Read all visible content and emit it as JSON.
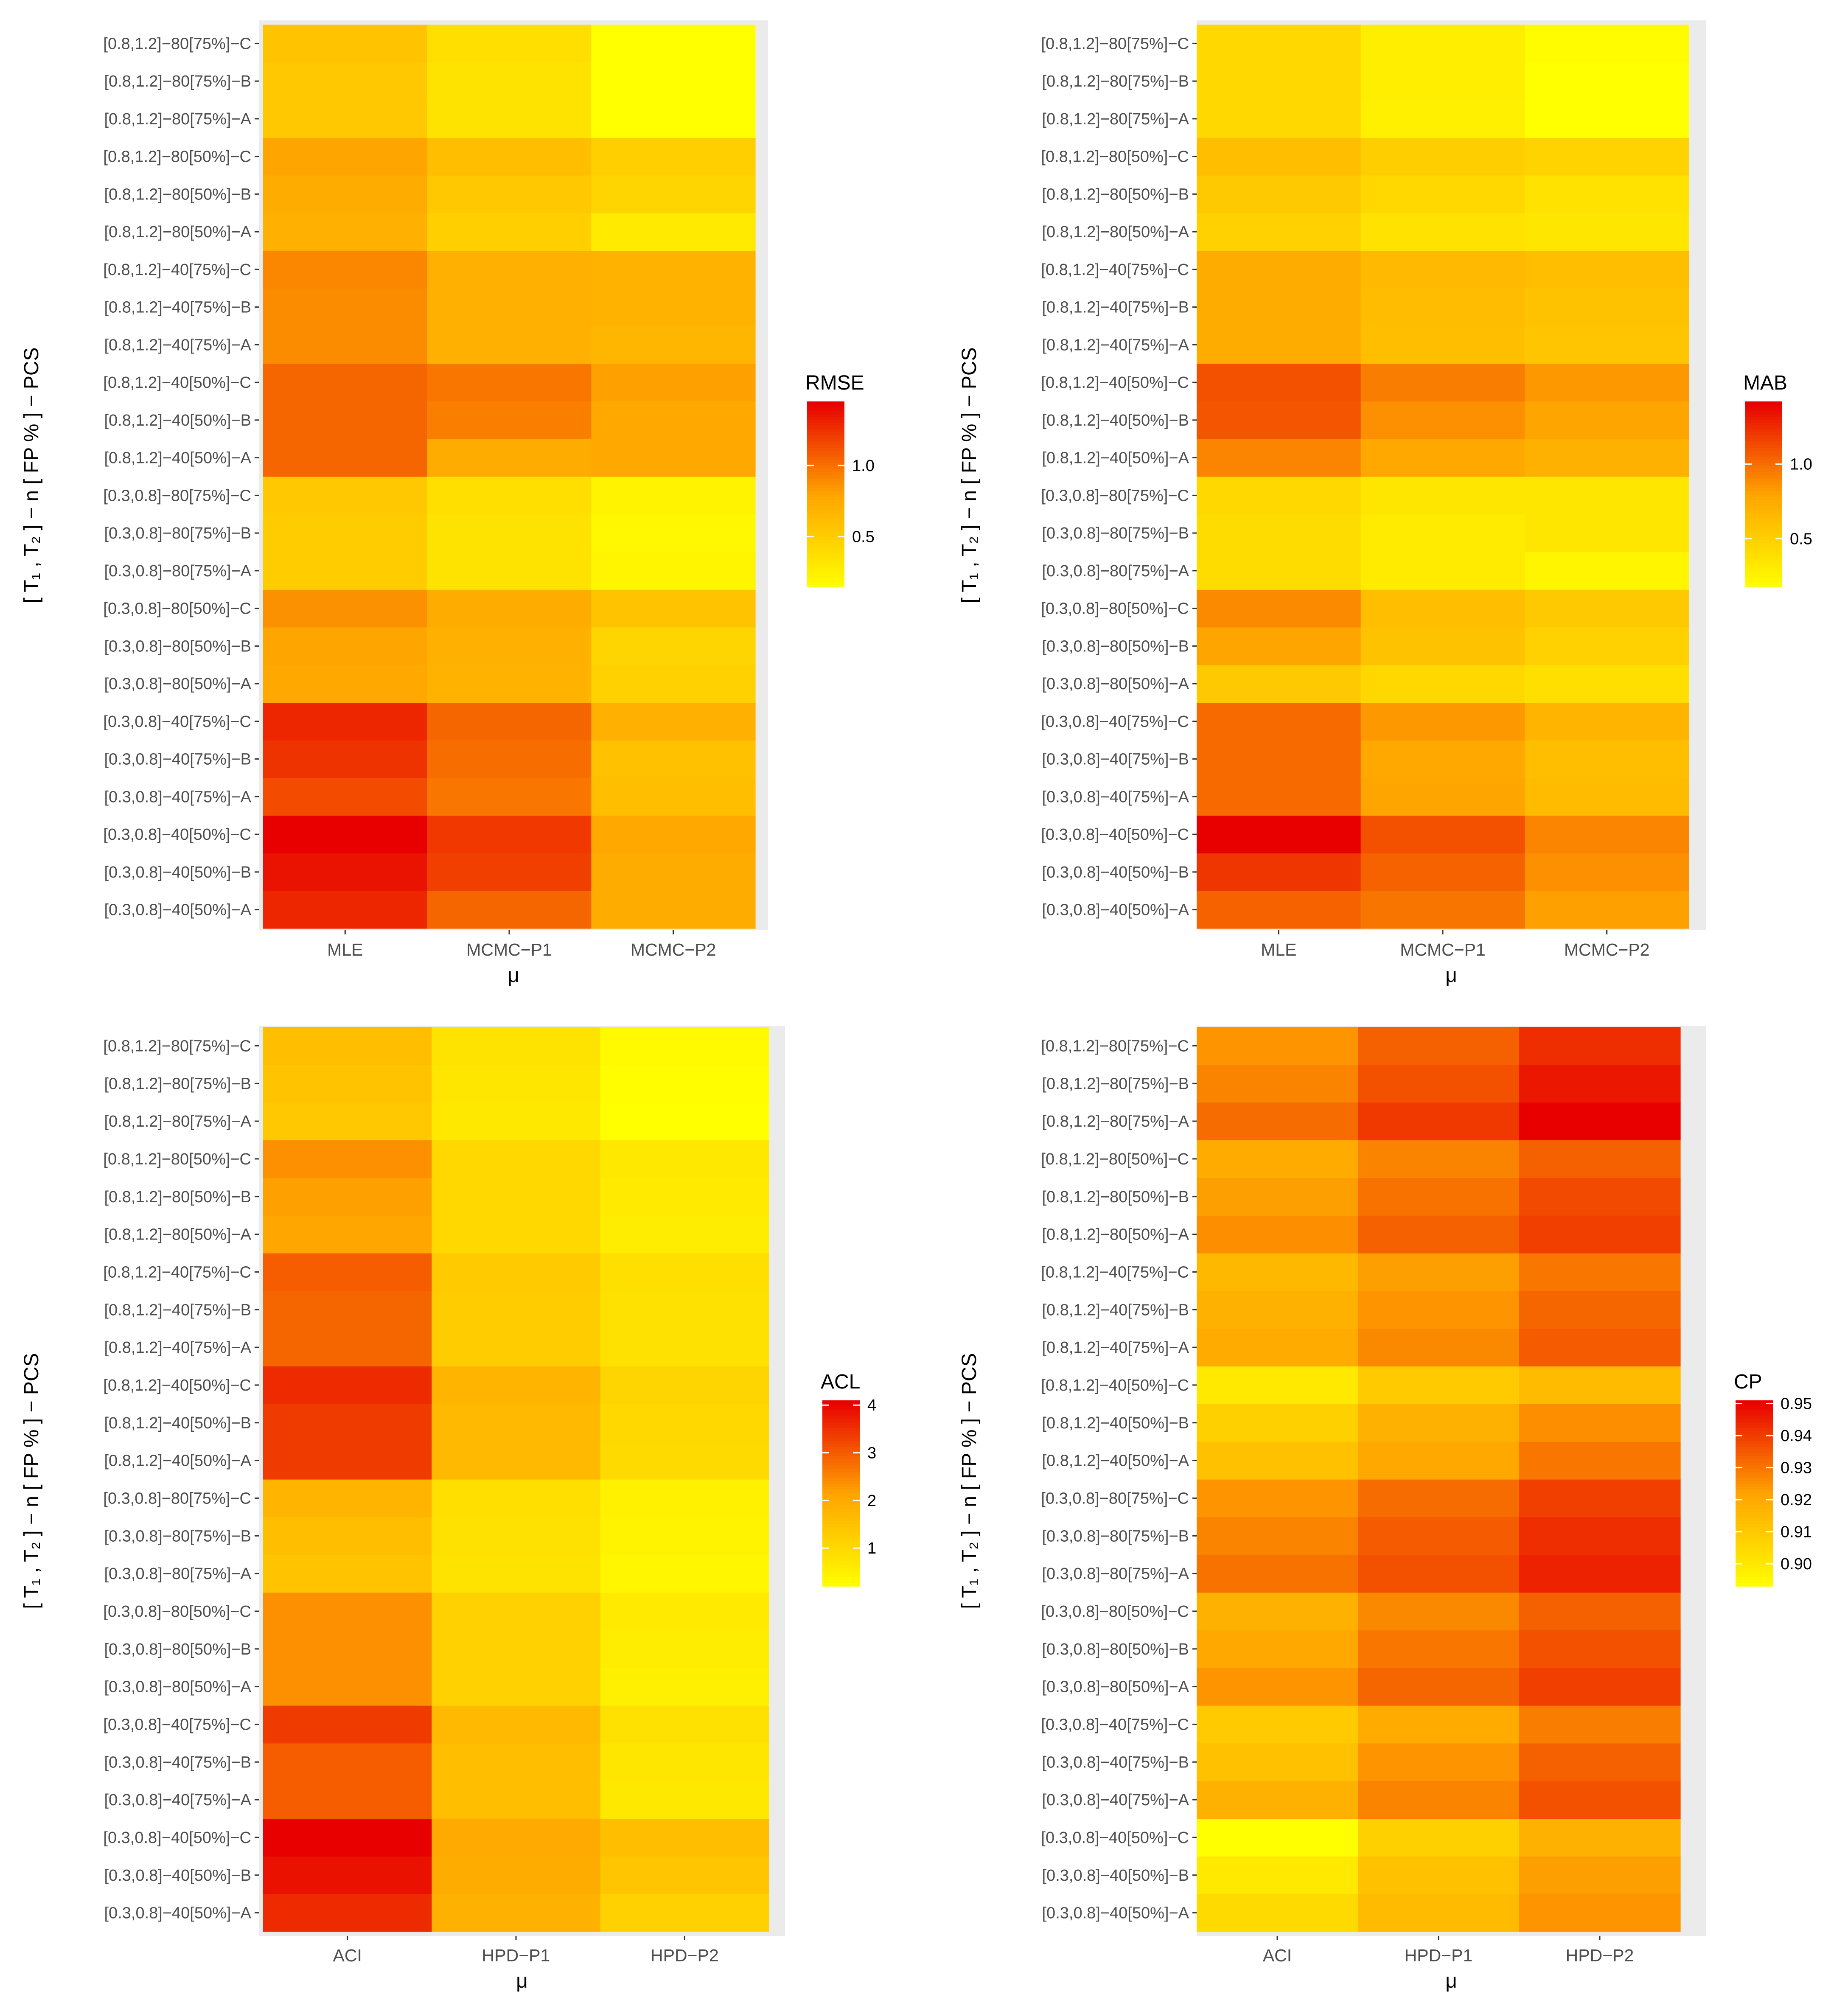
{
  "colors": {
    "panel_bg": "#ebebeb",
    "grid": "#ffffff",
    "low": "#ffff00",
    "high": "#e80000",
    "tick_text": "#4d4d4d"
  },
  "chart_data": [
    {
      "type": "heatmap",
      "legend_title": "RMSE",
      "xlabel": "μ",
      "ylabel": "[ T₁ , T₂ ] − n [ FP % ] − PCS",
      "x_categories": [
        "MLE",
        "MCMC−P1",
        "MCMC−P2"
      ],
      "y_categories": [
        "[0.3,0.8]−40[50%]−A",
        "[0.3,0.8]−40[50%]−B",
        "[0.3,0.8]−40[50%]−C",
        "[0.3,0.8]−40[75%]−A",
        "[0.3,0.8]−40[75%]−B",
        "[0.3,0.8]−40[75%]−C",
        "[0.3,0.8]−80[50%]−A",
        "[0.3,0.8]−80[50%]−B",
        "[0.3,0.8]−80[50%]−C",
        "[0.3,0.8]−80[75%]−A",
        "[0.3,0.8]−80[75%]−B",
        "[0.3,0.8]−80[75%]−C",
        "[0.8,1.2]−40[50%]−A",
        "[0.8,1.2]−40[50%]−B",
        "[0.8,1.2]−40[50%]−C",
        "[0.8,1.2]−40[75%]−A",
        "[0.8,1.2]−40[75%]−B",
        "[0.8,1.2]−40[75%]−C",
        "[0.8,1.2]−80[50%]−A",
        "[0.8,1.2]−80[50%]−B",
        "[0.8,1.2]−80[50%]−C",
        "[0.8,1.2]−80[75%]−A",
        "[0.8,1.2]−80[75%]−B",
        "[0.8,1.2]−80[75%]−C"
      ],
      "values": [
        [
          1.3,
          1.05,
          0.75
        ],
        [
          1.38,
          1.2,
          0.75
        ],
        [
          1.45,
          1.23,
          0.78
        ],
        [
          1.15,
          0.98,
          0.62
        ],
        [
          1.25,
          1.02,
          0.6
        ],
        [
          1.3,
          1.05,
          0.72
        ],
        [
          0.78,
          0.7,
          0.48
        ],
        [
          0.8,
          0.72,
          0.45
        ],
        [
          0.88,
          0.75,
          0.58
        ],
        [
          0.52,
          0.35,
          0.22
        ],
        [
          0.52,
          0.35,
          0.2
        ],
        [
          0.55,
          0.38,
          0.24
        ],
        [
          1.05,
          0.75,
          0.78
        ],
        [
          1.05,
          0.95,
          0.78
        ],
        [
          1.05,
          0.98,
          0.82
        ],
        [
          0.9,
          0.72,
          0.68
        ],
        [
          0.9,
          0.72,
          0.7
        ],
        [
          0.92,
          0.72,
          0.7
        ],
        [
          0.72,
          0.5,
          0.3
        ],
        [
          0.75,
          0.55,
          0.45
        ],
        [
          0.8,
          0.62,
          0.5
        ],
        [
          0.55,
          0.35,
          0.15
        ],
        [
          0.55,
          0.35,
          0.15
        ],
        [
          0.58,
          0.38,
          0.15
        ]
      ],
      "scale_min": 0.15,
      "scale_max": 1.45,
      "legend_ticks": [
        0.5,
        1.0
      ],
      "legend_tick_labels": [
        "0.5",
        "1.0"
      ]
    },
    {
      "type": "heatmap",
      "legend_title": "MAB",
      "xlabel": "μ",
      "ylabel": "[ T₁ , T₂ ] − n [ FP % ] − PCS",
      "x_categories": [
        "MLE",
        "MCMC−P1",
        "MCMC−P2"
      ],
      "y_categories": [
        "[0.3,0.8]−40[50%]−A",
        "[0.3,0.8]−40[50%]−B",
        "[0.3,0.8]−40[50%]−C",
        "[0.3,0.8]−40[75%]−A",
        "[0.3,0.8]−40[75%]−B",
        "[0.3,0.8]−40[75%]−C",
        "[0.3,0.8]−80[50%]−A",
        "[0.3,0.8]−80[50%]−B",
        "[0.3,0.8]−80[50%]−C",
        "[0.3,0.8]−80[75%]−A",
        "[0.3,0.8]−80[75%]−B",
        "[0.3,0.8]−80[75%]−C",
        "[0.8,1.2]−40[50%]−A",
        "[0.8,1.2]−40[50%]−B",
        "[0.8,1.2]−40[50%]−C",
        "[0.8,1.2]−40[75%]−A",
        "[0.8,1.2]−40[75%]−B",
        "[0.8,1.2]−40[75%]−C",
        "[0.8,1.2]−80[50%]−A",
        "[0.8,1.2]−80[50%]−B",
        "[0.8,1.2]−80[50%]−C",
        "[0.8,1.2]−80[75%]−A",
        "[0.8,1.2]−80[75%]−B",
        "[0.8,1.2]−80[75%]−C"
      ],
      "values": [
        [
          1.05,
          0.98,
          0.82
        ],
        [
          1.22,
          1.05,
          0.88
        ],
        [
          1.42,
          1.12,
          0.92
        ],
        [
          1.02,
          0.8,
          0.65
        ],
        [
          1.02,
          0.78,
          0.62
        ],
        [
          1.02,
          0.85,
          0.7
        ],
        [
          0.55,
          0.45,
          0.4
        ],
        [
          0.8,
          0.6,
          0.5
        ],
        [
          0.9,
          0.62,
          0.55
        ],
        [
          0.42,
          0.32,
          0.25
        ],
        [
          0.42,
          0.32,
          0.35
        ],
        [
          0.45,
          0.35,
          0.35
        ],
        [
          0.92,
          0.78,
          0.72
        ],
        [
          1.1,
          0.88,
          0.8
        ],
        [
          1.12,
          0.95,
          0.85
        ],
        [
          0.75,
          0.62,
          0.58
        ],
        [
          0.75,
          0.64,
          0.6
        ],
        [
          0.75,
          0.66,
          0.62
        ],
        [
          0.5,
          0.38,
          0.35
        ],
        [
          0.55,
          0.45,
          0.38
        ],
        [
          0.62,
          0.52,
          0.48
        ],
        [
          0.45,
          0.28,
          0.18
        ],
        [
          0.45,
          0.3,
          0.18
        ],
        [
          0.45,
          0.3,
          0.2
        ]
      ],
      "scale_min": 0.18,
      "scale_max": 1.42,
      "legend_ticks": [
        0.5,
        1.0
      ],
      "legend_tick_labels": [
        "0.5",
        "1.0"
      ]
    },
    {
      "type": "heatmap",
      "legend_title": "ACL",
      "xlabel": "μ",
      "ylabel": "[ T₁ , T₂ ] − n [ FP % ] − PCS",
      "x_categories": [
        "ACI",
        "HPD−P1",
        "HPD−P2"
      ],
      "y_categories": [
        "[0.3,0.8]−40[50%]−A",
        "[0.3,0.8]−40[50%]−B",
        "[0.3,0.8]−40[50%]−C",
        "[0.3,0.8]−40[75%]−A",
        "[0.3,0.8]−40[75%]−B",
        "[0.3,0.8]−40[75%]−C",
        "[0.3,0.8]−80[50%]−A",
        "[0.3,0.8]−80[50%]−B",
        "[0.3,0.8]−80[50%]−C",
        "[0.3,0.8]−80[75%]−A",
        "[0.3,0.8]−80[75%]−B",
        "[0.3,0.8]−80[75%]−C",
        "[0.8,1.2]−40[50%]−A",
        "[0.8,1.2]−40[50%]−B",
        "[0.8,1.2]−40[50%]−C",
        "[0.8,1.2]−40[75%]−A",
        "[0.8,1.2]−40[75%]−B",
        "[0.8,1.2]−40[75%]−C",
        "[0.8,1.2]−80[50%]−A",
        "[0.8,1.2]−80[50%]−B",
        "[0.8,1.2]−80[50%]−C",
        "[0.8,1.2]−80[75%]−A",
        "[0.8,1.2]−80[75%]−B",
        "[0.8,1.2]−80[75%]−C"
      ],
      "values": [
        [
          3.6,
          1.9,
          1.2
        ],
        [
          3.9,
          2.0,
          1.45
        ],
        [
          4.1,
          2.05,
          1.6
        ],
        [
          3.0,
          1.6,
          0.7
        ],
        [
          3.0,
          1.6,
          0.75
        ],
        [
          3.4,
          1.7,
          0.85
        ],
        [
          2.4,
          1.2,
          0.55
        ],
        [
          2.4,
          1.2,
          0.6
        ],
        [
          2.4,
          1.2,
          0.65
        ],
        [
          1.5,
          0.8,
          0.4
        ],
        [
          1.6,
          0.85,
          0.45
        ],
        [
          1.8,
          0.9,
          0.5
        ],
        [
          3.4,
          1.7,
          1.0
        ],
        [
          3.4,
          1.7,
          1.05
        ],
        [
          3.6,
          1.8,
          1.1
        ],
        [
          2.9,
          1.3,
          0.85
        ],
        [
          2.9,
          1.3,
          0.85
        ],
        [
          3.0,
          1.35,
          0.9
        ],
        [
          2.1,
          1.05,
          0.6
        ],
        [
          2.2,
          1.05,
          0.65
        ],
        [
          2.4,
          1.05,
          0.7
        ],
        [
          1.4,
          0.7,
          0.2
        ],
        [
          1.5,
          0.75,
          0.25
        ],
        [
          1.6,
          0.8,
          0.3
        ]
      ],
      "scale_min": 0.2,
      "scale_max": 4.1,
      "legend_ticks": [
        1,
        2,
        3,
        4
      ],
      "legend_tick_labels": [
        "1",
        "2",
        "3",
        "4"
      ]
    },
    {
      "type": "heatmap",
      "legend_title": "CP",
      "xlabel": "μ",
      "ylabel": "[ T₁ , T₂ ] − n [ FP % ] − PCS",
      "x_categories": [
        "ACI",
        "HPD−P1",
        "HPD−P2"
      ],
      "y_categories": [
        "[0.3,0.8]−40[50%]−A",
        "[0.3,0.8]−40[50%]−B",
        "[0.3,0.8]−40[50%]−C",
        "[0.3,0.8]−40[75%]−A",
        "[0.3,0.8]−40[75%]−B",
        "[0.3,0.8]−40[75%]−C",
        "[0.3,0.8]−80[50%]−A",
        "[0.3,0.8]−80[50%]−B",
        "[0.3,0.8]−80[50%]−C",
        "[0.3,0.8]−80[75%]−A",
        "[0.3,0.8]−80[75%]−B",
        "[0.3,0.8]−80[75%]−C",
        "[0.8,1.2]−40[50%]−A",
        "[0.8,1.2]−40[50%]−B",
        "[0.8,1.2]−40[50%]−C",
        "[0.8,1.2]−40[75%]−A",
        "[0.8,1.2]−40[75%]−B",
        "[0.8,1.2]−40[75%]−C",
        "[0.8,1.2]−80[50%]−A",
        "[0.8,1.2]−80[50%]−B",
        "[0.8,1.2]−80[50%]−C",
        "[0.8,1.2]−80[75%]−A",
        "[0.8,1.2]−80[75%]−B",
        "[0.8,1.2]−80[75%]−C"
      ],
      "values": [
        [
          0.905,
          0.915,
          0.925
        ],
        [
          0.9,
          0.913,
          0.923
        ],
        [
          0.893,
          0.908,
          0.918
        ],
        [
          0.918,
          0.928,
          0.937
        ],
        [
          0.913,
          0.925,
          0.934
        ],
        [
          0.91,
          0.92,
          0.929
        ],
        [
          0.925,
          0.933,
          0.94
        ],
        [
          0.921,
          0.93,
          0.937
        ],
        [
          0.918,
          0.927,
          0.934
        ],
        [
          0.931,
          0.937,
          0.945
        ],
        [
          0.928,
          0.935,
          0.943
        ],
        [
          0.925,
          0.932,
          0.94
        ],
        [
          0.913,
          0.921,
          0.93
        ],
        [
          0.908,
          0.918,
          0.926
        ],
        [
          0.9,
          0.91,
          0.915
        ],
        [
          0.92,
          0.927,
          0.935
        ],
        [
          0.918,
          0.925,
          0.933
        ],
        [
          0.916,
          0.923,
          0.93
        ],
        [
          0.926,
          0.934,
          0.94
        ],
        [
          0.923,
          0.931,
          0.938
        ],
        [
          0.92,
          0.928,
          0.934
        ],
        [
          0.932,
          0.941,
          0.951
        ],
        [
          0.928,
          0.937,
          0.947
        ],
        [
          0.925,
          0.934,
          0.943
        ]
      ],
      "scale_min": 0.893,
      "scale_max": 0.951,
      "legend_ticks": [
        0.9,
        0.91,
        0.92,
        0.93,
        0.94,
        0.95
      ],
      "legend_tick_labels": [
        "0.90",
        "0.91",
        "0.92",
        "0.93",
        "0.94",
        "0.95"
      ]
    }
  ]
}
